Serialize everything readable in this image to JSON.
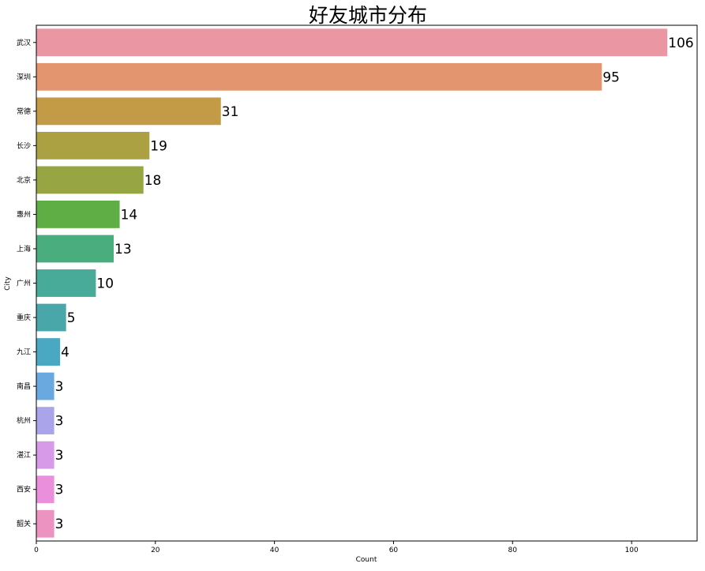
{
  "chart_data": {
    "type": "bar",
    "orientation": "horizontal",
    "title": "好友城市分布",
    "xlabel": "Count",
    "ylabel": "City",
    "categories": [
      "武汉",
      "深圳",
      "常德",
      "长沙",
      "北京",
      "惠州",
      "上海",
      "广州",
      "重庆",
      "九江",
      "南昌",
      "杭州",
      "湛江",
      "西安",
      "韶关"
    ],
    "values": [
      106,
      95,
      31,
      19,
      18,
      14,
      13,
      10,
      5,
      4,
      3,
      3,
      3,
      3,
      3
    ],
    "colors": [
      "#ea96a3",
      "#e39570",
      "#c39b46",
      "#aba042",
      "#97a543",
      "#5fae45",
      "#49ad7e",
      "#48aa98",
      "#4aa7a9",
      "#4aa8c2",
      "#6aa9e0",
      "#aaa5eb",
      "#d69ae9",
      "#ea8fdc",
      "#ec93c1"
    ],
    "xlim": [
      0,
      111
    ],
    "xticks": [
      0,
      20,
      40,
      60,
      80,
      100
    ],
    "grid": false,
    "legend": "none"
  }
}
